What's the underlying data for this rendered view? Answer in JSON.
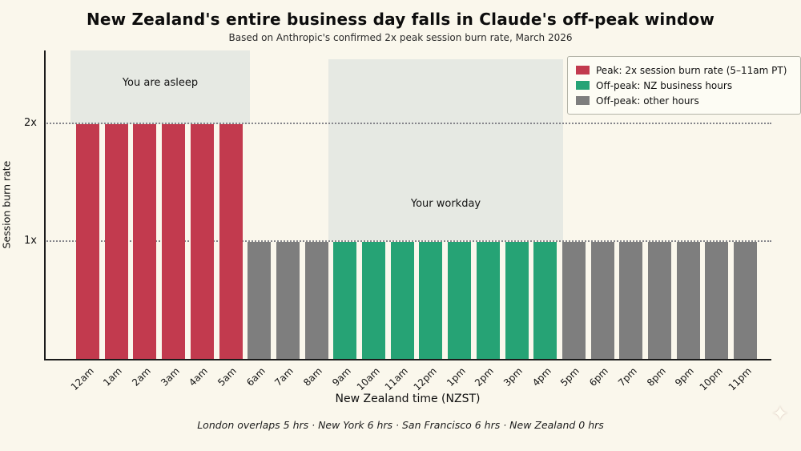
{
  "chart_data": {
    "type": "bar",
    "title": "New Zealand's entire business day falls in Claude's off-peak window",
    "subtitle": "Based on Anthropic's confirmed 2x peak session burn rate, March 2026",
    "xlabel": "New Zealand time (NZST)",
    "ylabel": "Session burn rate",
    "categories": [
      "12am",
      "1am",
      "2am",
      "3am",
      "4am",
      "5am",
      "6am",
      "7am",
      "8am",
      "9am",
      "10am",
      "11am",
      "12pm",
      "1pm",
      "2pm",
      "3pm",
      "4pm",
      "5pm",
      "6pm",
      "7pm",
      "8pm",
      "9pm",
      "10pm",
      "11pm"
    ],
    "values": [
      2,
      2,
      2,
      2,
      2,
      2,
      1,
      1,
      1,
      1,
      1,
      1,
      1,
      1,
      1,
      1,
      1,
      1,
      1,
      1,
      1,
      1,
      1,
      1
    ],
    "groups": [
      "peak",
      "peak",
      "peak",
      "peak",
      "peak",
      "peak",
      "other",
      "other",
      "other",
      "nz",
      "nz",
      "nz",
      "nz",
      "nz",
      "nz",
      "nz",
      "nz",
      "other",
      "other",
      "other",
      "other",
      "other",
      "other",
      "other"
    ],
    "colors": {
      "peak": "#c23a4e",
      "nz": "#26a375",
      "other": "#7e7e7e"
    },
    "ylim": [
      0,
      2.6
    ],
    "grid": "horizontal-dotted",
    "yticks": [
      {
        "label": "1x",
        "value": 1
      },
      {
        "label": "2x",
        "value": 2
      }
    ],
    "legend_position": "upper-right",
    "legend": [
      {
        "key": "peak",
        "label": "Peak: 2x session burn rate (5–11am PT)"
      },
      {
        "key": "nz",
        "label": "Off-peak: NZ business hours"
      },
      {
        "key": "other",
        "label": "Off-peak: other hours"
      }
    ],
    "regions": [
      {
        "label": "You are asleep",
        "from": "12am",
        "to": "5am"
      },
      {
        "label": "Your workday",
        "from": "9am",
        "to": "4pm"
      }
    ]
  },
  "footer": "London overlaps 5 hrs  ·  New York 6 hrs  ·  San Francisco 6 hrs  ·  New Zealand 0 hrs",
  "sparkle_icon": "✦"
}
